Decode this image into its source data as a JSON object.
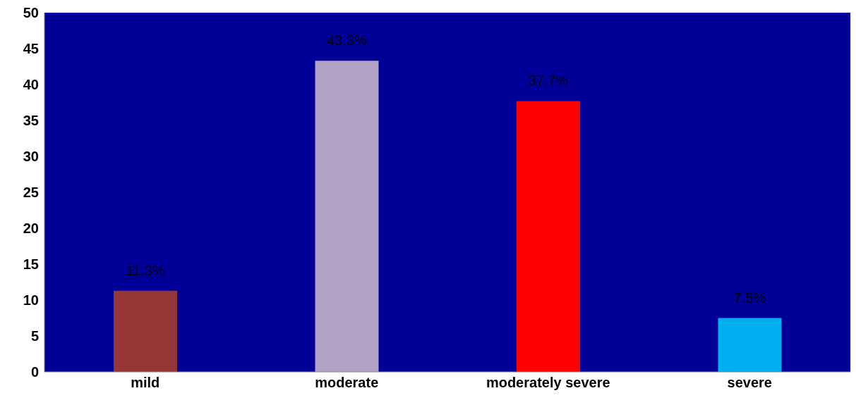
{
  "chart_data": {
    "type": "bar",
    "categories": [
      "mild",
      "moderate",
      "moderately severe",
      "severe"
    ],
    "values": [
      11.3,
      43.3,
      37.7,
      7.5
    ],
    "colors": [
      "#953735",
      "#b3a2c7",
      "#ff0000",
      "#00b0f0"
    ],
    "value_labels": [
      "11.3%",
      "43.3%",
      "37.7%",
      "7.5%"
    ],
    "ylim": [
      0,
      50
    ],
    "yticks": [
      0,
      5,
      10,
      15,
      20,
      25,
      30,
      35,
      40,
      45,
      50
    ],
    "grid": false
  }
}
